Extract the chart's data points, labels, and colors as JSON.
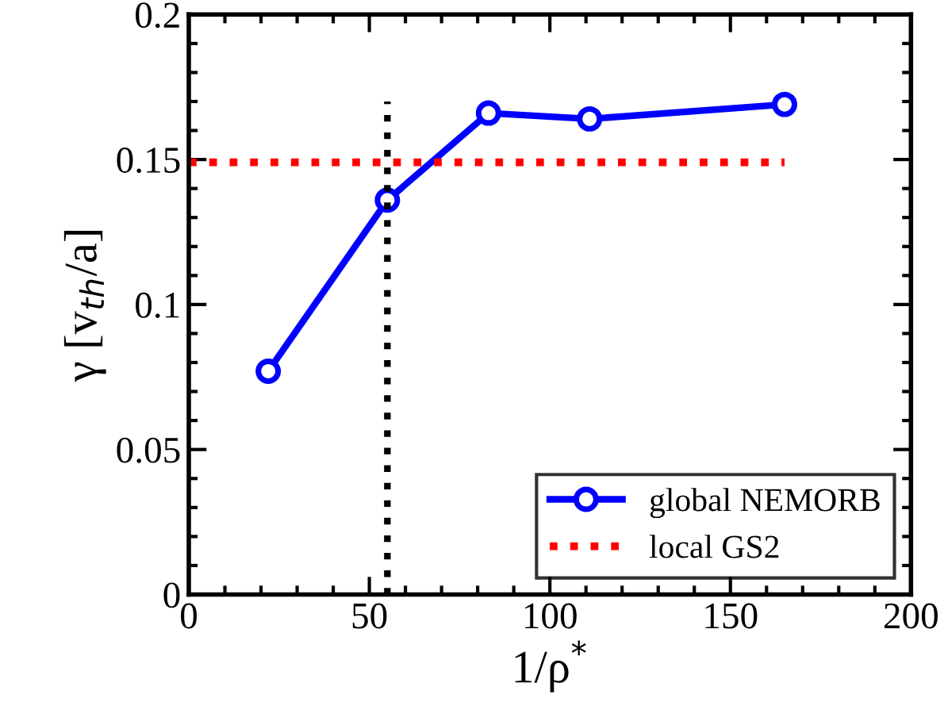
{
  "chart_data": {
    "type": "line",
    "xlabel": "1/ρ$^{*}$",
    "ylabel": "γ [v$_{th}$/a]",
    "xlim": [
      0,
      200
    ],
    "xticks": [
      0,
      50,
      100,
      150,
      200
    ],
    "ylim": [
      0,
      0.2
    ],
    "yticks": [
      {
        "value": 0,
        "label": "0"
      },
      0.05,
      {
        "value": 0.1,
        "label": "0.1"
      },
      0.15,
      {
        "value": 0.2,
        "label": "0.2"
      }
    ],
    "series": [
      {
        "name": "global NEMORB",
        "color": "#0000ff",
        "x": [
          22,
          55,
          83,
          111,
          165
        ],
        "values": [
          0.077,
          0.136,
          0.166,
          0.164,
          0.169
        ],
        "marker": "circle",
        "line_style": "solid"
      },
      {
        "name": "local GS2",
        "color": "#ff0000",
        "x": [
          0,
          165
        ],
        "values": [
          0.149,
          0.149
        ],
        "marker": "none",
        "line_style": "dotted"
      }
    ],
    "ref_lines": [
      {
        "axis": "x",
        "value": 55,
        "color": "#000000",
        "line_style": "dotted"
      }
    ],
    "legend": "bottom right",
    "grid": false
  }
}
